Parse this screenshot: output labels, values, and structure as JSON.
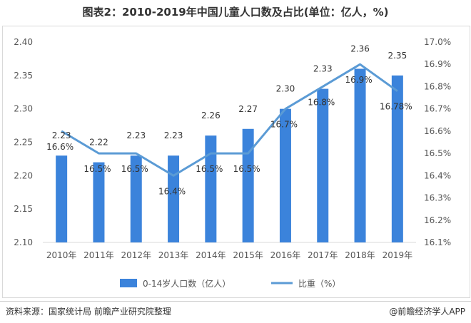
{
  "title": "图表2：2010-2019年中国儿童人口数及占比(单位：亿人，%)",
  "footer": {
    "source": "资料来源：国家统计局 前瞻产业研究院整理",
    "brand": "@前瞻经济学人APP"
  },
  "colors": {
    "bar": "#3b83db",
    "line": "#5b9bd5",
    "axis": "#d9d9d9"
  },
  "chart_data": {
    "type": "bar",
    "categories": [
      "2010年",
      "2011年",
      "2012年",
      "2013年",
      "2014年",
      "2015年",
      "2016年",
      "2017年",
      "2018年",
      "2019年"
    ],
    "series": [
      {
        "name": "0-14岁人口数（亿人）",
        "type": "bar",
        "axis": "left",
        "values": [
          2.23,
          2.22,
          2.23,
          2.23,
          2.26,
          2.27,
          2.3,
          2.33,
          2.36,
          2.35
        ],
        "labels": [
          "2.23",
          "2.22",
          "2.23",
          "2.23",
          "2.26",
          "2.27",
          "2.30",
          "2.33",
          "2.36",
          "2.35"
        ]
      },
      {
        "name": "比重（%）",
        "type": "line",
        "axis": "right",
        "values": [
          16.6,
          16.5,
          16.5,
          16.4,
          16.5,
          16.5,
          16.7,
          16.8,
          16.9,
          16.78
        ],
        "labels": [
          "16.6%",
          "16.5%",
          "16.5%",
          "16.4%",
          "16.5%",
          "16.5%",
          "16.7%",
          "16.8%",
          "16.9%",
          "16.78%"
        ]
      }
    ],
    "y_left": {
      "lim": [
        2.1,
        2.4
      ],
      "ticks": [
        "2.10",
        "2.15",
        "2.20",
        "2.25",
        "2.30",
        "2.35",
        "2.40"
      ]
    },
    "y_right": {
      "lim": [
        16.1,
        17.0
      ],
      "ticks": [
        "16.1%",
        "16.2%",
        "16.3%",
        "16.4%",
        "16.5%",
        "16.6%",
        "16.7%",
        "16.8%",
        "16.9%",
        "17.0%"
      ]
    },
    "legend_position": "bottom",
    "grid": false
  }
}
